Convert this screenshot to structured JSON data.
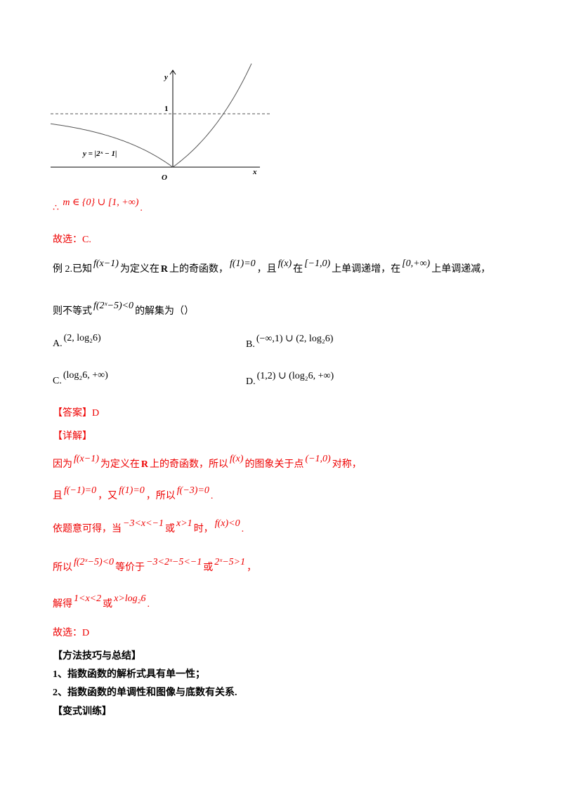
{
  "graph": {
    "y_label": "y",
    "one_label": "1",
    "origin_label": "O",
    "x_label": "x",
    "curve_label": "y = |2ˣ − 1|"
  },
  "lines": [
    [
      "∴ ",
      "m ∈ {0} ∪ [1, +∞)",
      "."
    ],
    [
      "故选：C."
    ],
    [
      "例 2.已知",
      "f(x−1)",
      "为定义在",
      "R",
      "上的奇函数，",
      "f(1)=0",
      "，且",
      "f(x)",
      "在",
      "[−1,0)",
      "上单调递增，在",
      "[0,+∞)",
      "上单调递减，"
    ],
    [
      "则不等式",
      "f(2ˣ−5)<0",
      "的解集为（",
      "）"
    ],
    [
      "【答案】D"
    ],
    [
      "【详解】"
    ],
    [
      "因为",
      "f(x−1)",
      "为定义在",
      "R",
      "上的奇函数，所以",
      "f(x)",
      "的图象关于点",
      "(−1,0)",
      "对称，"
    ],
    [
      "且",
      "f(−1)=0",
      "，又",
      "f(1)=0",
      "，所以",
      "f(−3)=0",
      "."
    ],
    [
      "依题意可得，当",
      "−3<x<−1",
      "或",
      "x>1",
      "时，",
      "f(x)<0",
      "."
    ],
    [
      "所以",
      "f(2ˣ−5)<0",
      "等价于",
      "−3<2ˣ−5<−1",
      "或",
      "2ˣ−5>1",
      "，"
    ],
    [
      "解得",
      "1<x<2",
      "或",
      "x>log₂6",
      "."
    ],
    [
      "故选：D"
    ],
    [
      "【方法技巧与总结】"
    ],
    [
      "1、指数函数的解析式具有单一性；"
    ],
    [
      "2、指数函数的单调性和图像与底数有关系."
    ],
    [
      "【变式训练】"
    ]
  ],
  "options": [
    {
      "letter": "A.",
      "text": "(2, log₂6)"
    },
    {
      "letter": "B.",
      "text": "(−∞,1) ∪ (2, log₂6)"
    },
    {
      "letter": "C.",
      "text": "(log₂6, +∞)"
    },
    {
      "letter": "D.",
      "text": "(1,2) ∪ (log₂6, +∞)"
    }
  ]
}
